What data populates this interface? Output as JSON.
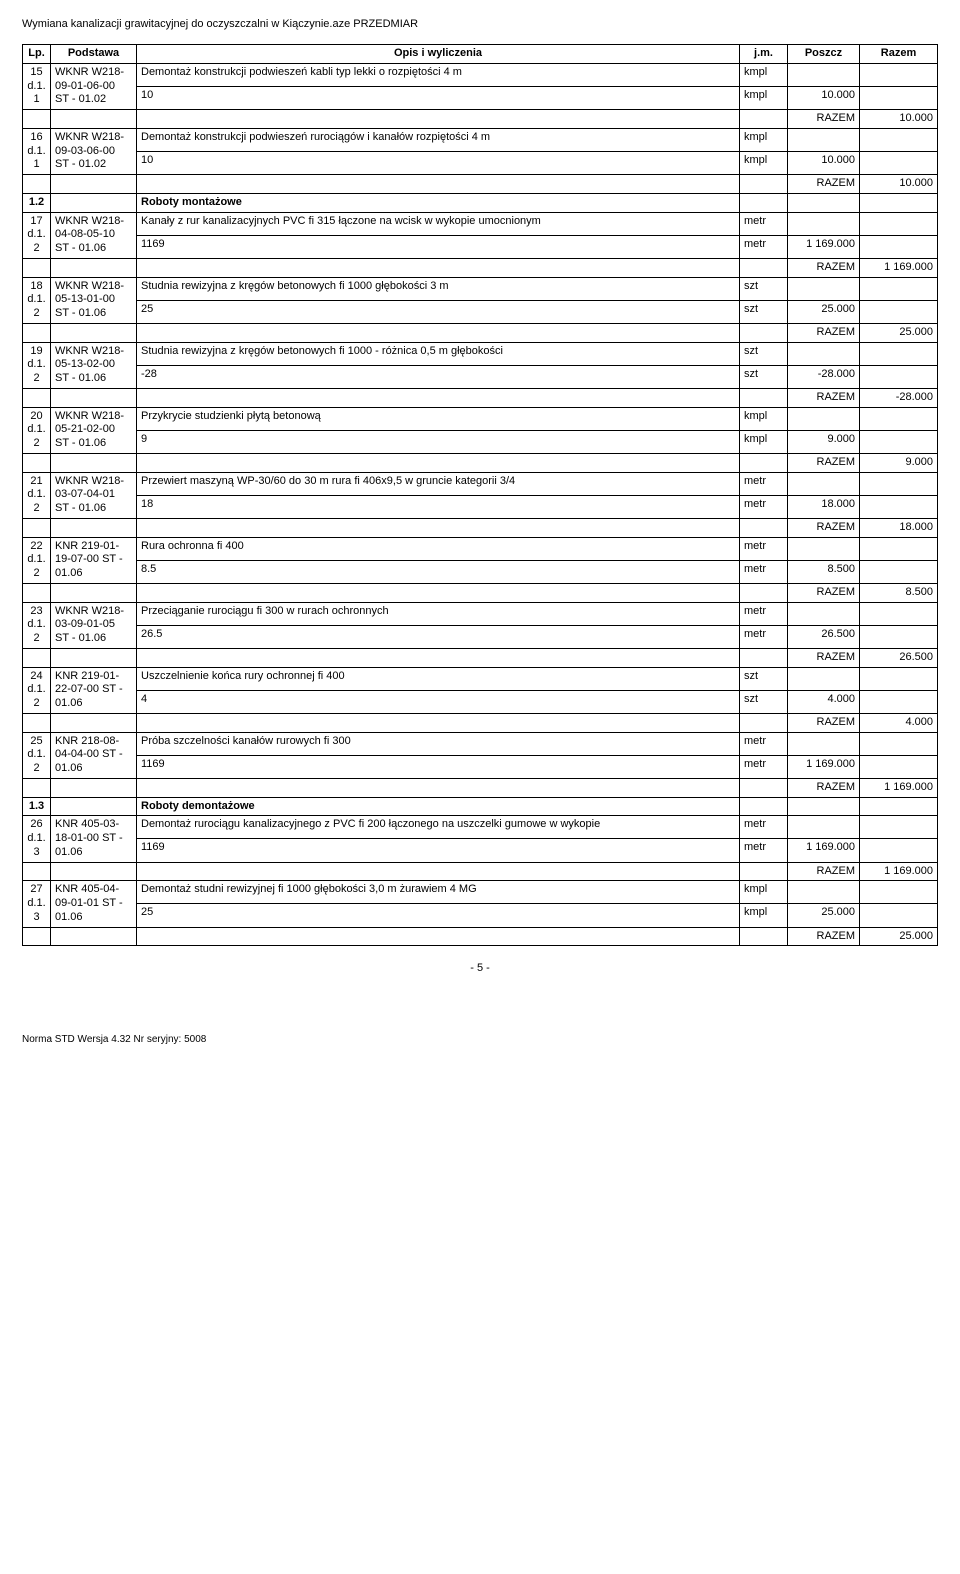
{
  "header_left": "Wymiana kanalizacji grawitacyjnej do oczyszczalni w Kiączynie.aze",
  "header_right": "PRZEDMIAR",
  "columns": {
    "lp": "Lp.",
    "basis": "Podstawa",
    "desc": "Opis i wyliczenia",
    "jm": "j.m.",
    "poszcz": "Poszcz",
    "razem": "Razem"
  },
  "razem_label": "RAZEM",
  "items": [
    {
      "lp": "15 d.1. 1",
      "basis": "WKNR W218-09-01-06-00 ST - 01.02",
      "desc": "Demontaż konstrukcji podwieszeń kabli typ lekki o rozpiętości 4 m",
      "jm": "kmpl",
      "calc": "10",
      "calc_jm": "kmpl",
      "calc_val": "10.000",
      "razem": "10.000"
    },
    {
      "lp": "16 d.1. 1",
      "basis": "WKNR W218-09-03-06-00 ST - 01.02",
      "desc": "Demontaż konstrukcji podwieszeń rurociągów i kanałów rozpiętości 4 m",
      "jm": "kmpl",
      "calc": "10",
      "calc_jm": "kmpl",
      "calc_val": "10.000",
      "razem": "10.000"
    },
    {
      "section_no": "1.2",
      "section_title": "Roboty montażowe"
    },
    {
      "lp": "17 d.1. 2",
      "basis": "WKNR W218-04-08-05-10 ST - 01.06",
      "desc": "Kanały z rur kanalizacyjnych PVC fi 315 łączone na wcisk w wykopie umocnionym",
      "jm": "metr",
      "calc": "1169",
      "calc_jm": "metr",
      "calc_val": "1 169.000",
      "razem": "1 169.000"
    },
    {
      "lp": "18 d.1. 2",
      "basis": "WKNR W218-05-13-01-00 ST - 01.06",
      "desc": "Studnia rewizyjna z kręgów betonowych fi 1000 głębokości 3 m",
      "jm": "szt",
      "calc": "25",
      "calc_jm": "szt",
      "calc_val": "25.000",
      "razem": "25.000"
    },
    {
      "lp": "19 d.1. 2",
      "basis": "WKNR W218-05-13-02-00 ST - 01.06",
      "desc": "Studnia rewizyjna z kręgów betonowych fi 1000 - różnica 0,5 m głębokości",
      "jm": "szt",
      "calc": "-28",
      "calc_jm": "szt",
      "calc_val": "-28.000",
      "razem": "-28.000"
    },
    {
      "lp": "20 d.1. 2",
      "basis": "WKNR W218-05-21-02-00 ST - 01.06",
      "desc": "Przykrycie studzienki płytą betonową",
      "jm": "kmpl",
      "calc": "9",
      "calc_jm": "kmpl",
      "calc_val": "9.000",
      "razem": "9.000"
    },
    {
      "lp": "21 d.1. 2",
      "basis": "WKNR W218-03-07-04-01 ST - 01.06",
      "desc": "Przewiert maszyną WP-30/60 do 30 m rura fi 406x9,5 w gruncie kategorii 3/4",
      "jm": "metr",
      "calc": "18",
      "calc_jm": "metr",
      "calc_val": "18.000",
      "razem": "18.000"
    },
    {
      "lp": "22 d.1. 2",
      "basis": "KNR 219-01-19-07-00 ST - 01.06",
      "desc": "Rura ochronna fi 400",
      "jm": "metr",
      "calc": "8.5",
      "calc_jm": "metr",
      "calc_val": "8.500",
      "razem": "8.500"
    },
    {
      "lp": "23 d.1. 2",
      "basis": "WKNR W218-03-09-01-05 ST - 01.06",
      "desc": "Przeciąganie rurociągu fi 300 w rurach ochronnych",
      "jm": "metr",
      "calc": "26.5",
      "calc_jm": "metr",
      "calc_val": "26.500",
      "razem": "26.500"
    },
    {
      "lp": "24 d.1. 2",
      "basis": "KNR 219-01-22-07-00 ST - 01.06",
      "desc": "Uszczelnienie końca rury ochronnej fi 400",
      "jm": "szt",
      "calc": "4",
      "calc_jm": "szt",
      "calc_val": "4.000",
      "razem": "4.000"
    },
    {
      "lp": "25 d.1. 2",
      "basis": "KNR 218-08-04-04-00 ST - 01.06",
      "desc": "Próba szczelności kanałów rurowych fi 300",
      "jm": "metr",
      "calc": "1169",
      "calc_jm": "metr",
      "calc_val": "1 169.000",
      "razem": "1 169.000"
    },
    {
      "section_no": "1.3",
      "section_title": "Roboty demontażowe"
    },
    {
      "lp": "26 d.1. 3",
      "basis": "KNR 405-03-18-01-00 ST - 01.06",
      "desc": "Demontaż rurociągu kanalizacyjnego z PVC fi 200 łączonego na uszczelki gumowe w wykopie",
      "jm": "metr",
      "calc": "1169",
      "calc_jm": "metr",
      "calc_val": "1 169.000",
      "razem": "1 169.000"
    },
    {
      "lp": "27 d.1. 3",
      "basis": "KNR 405-04-09-01-01 ST - 01.06",
      "desc": "Demontaż studni rewizyjnej fi 1000 głębokości 3,0 m żurawiem 4 MG",
      "jm": "kmpl",
      "calc": "25",
      "calc_jm": "kmpl",
      "calc_val": "25.000",
      "razem": "25.000"
    }
  ],
  "page_number": "- 5 -",
  "footer_text": "Norma STD Wersja 4.32 Nr seryjny: 5008"
}
